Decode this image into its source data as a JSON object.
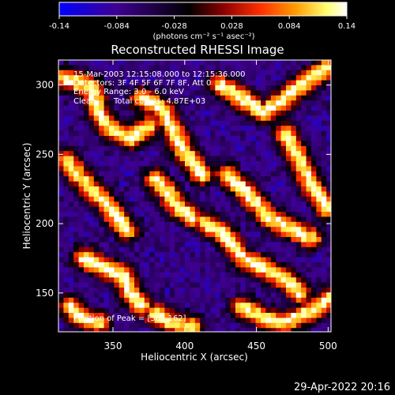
{
  "chart_data": {
    "type": "heatmap",
    "title": "Reconstructed RHESSI Image",
    "xlabel": "Heliocentric X (arcsec)",
    "ylabel": "Heliocentric Y (arcsec)",
    "xlim": [
      312,
      502
    ],
    "ylim": [
      122,
      318
    ],
    "x_ticks": [
      350,
      400,
      450,
      500
    ],
    "y_ticks": [
      150,
      200,
      250,
      300
    ],
    "colorbar": {
      "range": [
        -0.14,
        0.14
      ],
      "ticks": [
        "-0.14",
        "-0.084",
        "-0.028",
        "0.028",
        "0.084",
        "0.14"
      ],
      "unit_label": "(photons cm⁻² s⁻¹ asec⁻²)",
      "colormap": [
        "#0000ff",
        "#3f0090",
        "#000000",
        "#8a0000",
        "#ff3000",
        "#ff9a00",
        "#ffff70",
        "#ffffff"
      ]
    },
    "annotations": {
      "time_range": "15-Mar-2003 12:15:08.000 to 12:15:36.000",
      "detectors": "Detectors: 3F 4F 5F 6F 7F 8F, Att 0",
      "energy": "Energy Range: 3.0 - 6.0 keV",
      "method": "Clean",
      "total_counts": "Total counts: 4.87E+03",
      "peak": "Position of Peak = [362,162]"
    },
    "peak_position": [
      362,
      162
    ]
  },
  "footer": {
    "timestamp": "29-Apr-2022 20:16"
  }
}
